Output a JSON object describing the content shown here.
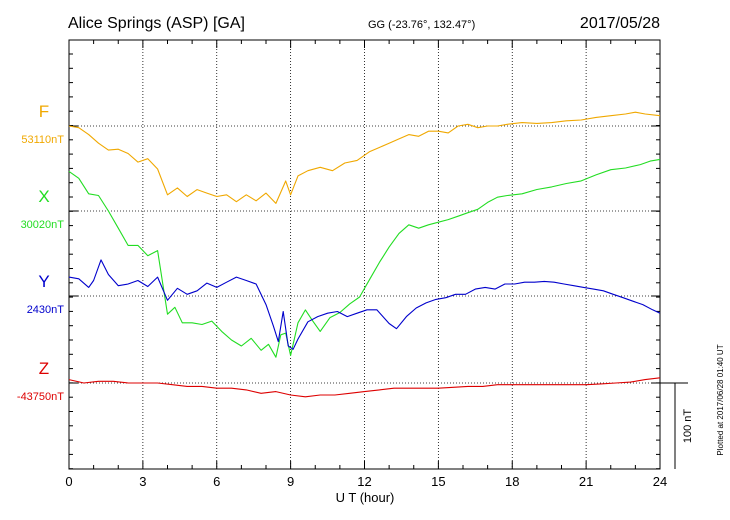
{
  "header": {
    "title": "Alice Springs (ASP)  [GA]",
    "coords": "GG (-23.76°, 132.47°)",
    "date": "2017/05/28"
  },
  "footer_note": "Plotted at 2017/06/28 01:40 UT",
  "chart_data": {
    "type": "line",
    "xlabel": "U T (hour)",
    "xlim": [
      0,
      24
    ],
    "xticks": [
      0,
      3,
      6,
      9,
      12,
      15,
      18,
      21,
      24
    ],
    "grid": true,
    "scale_bar": {
      "label": "100 nT",
      "value_nT": 100
    },
    "series": [
      {
        "name": "F",
        "baseline_label": "53110nT",
        "baseline_nT": 53110,
        "color": "#f0a800",
        "x": [
          0,
          0.4,
          0.8,
          1.2,
          1.6,
          2.0,
          2.4,
          2.8,
          3.2,
          3.6,
          4.0,
          4.4,
          4.8,
          5.2,
          5.6,
          6.0,
          6.4,
          6.8,
          7.2,
          7.6,
          8.0,
          8.4,
          8.8,
          9.0,
          9.3,
          9.7,
          10.2,
          10.7,
          11.2,
          11.7,
          12.2,
          12.6,
          13.0,
          13.4,
          13.8,
          14.2,
          14.6,
          15.0,
          15.4,
          15.8,
          16.2,
          16.6,
          17.0,
          17.4,
          17.8,
          18.4,
          19.0,
          19.6,
          20.2,
          20.8,
          21.4,
          22.0,
          22.6,
          23.0,
          23.4,
          24.0
        ],
        "y": [
          53110,
          53108,
          53100,
          53090,
          53082,
          53083,
          53078,
          53068,
          53072,
          53060,
          53030,
          53038,
          53028,
          53036,
          53032,
          53028,
          53030,
          53022,
          53030,
          53023,
          53032,
          53020,
          53046,
          53030,
          53052,
          53058,
          53062,
          53058,
          53067,
          53070,
          53080,
          53085,
          53090,
          53095,
          53100,
          53098,
          53104,
          53104,
          53102,
          53110,
          53112,
          53108,
          53110,
          53110,
          53112,
          53114,
          53113,
          53114,
          53116,
          53117,
          53120,
          53122,
          53124,
          53126,
          53124,
          53122
        ]
      },
      {
        "name": "X",
        "baseline_label": "30020nT",
        "baseline_nT": 30020,
        "color": "#22dd22",
        "x": [
          0,
          0.4,
          0.8,
          1.2,
          1.6,
          2.0,
          2.4,
          2.8,
          3.2,
          3.6,
          4.0,
          4.3,
          4.6,
          5.0,
          5.4,
          5.8,
          6.2,
          6.6,
          7.0,
          7.4,
          7.8,
          8.1,
          8.4,
          8.6,
          8.8,
          9.0,
          9.3,
          9.6,
          9.9,
          10.2,
          10.6,
          11.0,
          11.4,
          11.8,
          12.2,
          12.6,
          13.0,
          13.4,
          13.8,
          14.2,
          14.6,
          15.0,
          15.4,
          15.8,
          16.2,
          16.6,
          17.0,
          17.4,
          17.8,
          18.4,
          19.0,
          19.6,
          20.2,
          20.8,
          21.4,
          22.0,
          22.6,
          23.2,
          23.6,
          24.0
        ],
        "y": [
          30066,
          30058,
          30040,
          30038,
          30020,
          30000,
          29980,
          29980,
          29968,
          29974,
          29900,
          29908,
          29890,
          29890,
          29888,
          29892,
          29880,
          29870,
          29863,
          29872,
          29858,
          29865,
          29850,
          29876,
          29878,
          29852,
          29890,
          29905,
          29892,
          29880,
          29896,
          29902,
          29912,
          29920,
          29940,
          29960,
          29978,
          29994,
          30004,
          30000,
          30004,
          30007,
          30010,
          30014,
          30018,
          30022,
          30030,
          30036,
          30038,
          30040,
          30045,
          30048,
          30052,
          30055,
          30062,
          30068,
          30070,
          30074,
          30078,
          30080
        ]
      },
      {
        "name": "Y",
        "baseline_label": "2430nT",
        "baseline_nT": 2430,
        "color": "#0000cc",
        "x": [
          0,
          0.4,
          0.8,
          1.0,
          1.3,
          1.6,
          2.0,
          2.4,
          2.8,
          3.2,
          3.6,
          4.0,
          4.4,
          4.8,
          5.2,
          5.6,
          6.0,
          6.4,
          6.8,
          7.2,
          7.6,
          8.0,
          8.3,
          8.5,
          8.7,
          8.9,
          9.1,
          9.3,
          9.7,
          10.1,
          10.5,
          10.9,
          11.3,
          11.7,
          12.1,
          12.5,
          13.0,
          13.3,
          13.7,
          14.1,
          14.5,
          14.9,
          15.3,
          15.7,
          16.1,
          16.5,
          16.9,
          17.3,
          17.7,
          18.1,
          18.5,
          18.9,
          19.3,
          19.7,
          20.1,
          20.5,
          20.9,
          21.3,
          21.7,
          22.1,
          22.5,
          22.9,
          23.3,
          23.7,
          24.0
        ],
        "y": [
          2452,
          2450,
          2440,
          2448,
          2472,
          2455,
          2442,
          2444,
          2448,
          2441,
          2452,
          2425,
          2439,
          2432,
          2436,
          2445,
          2440,
          2446,
          2452,
          2448,
          2444,
          2420,
          2395,
          2377,
          2412,
          2372,
          2368,
          2380,
          2400,
          2406,
          2410,
          2412,
          2406,
          2410,
          2414,
          2414,
          2398,
          2392,
          2406,
          2416,
          2422,
          2426,
          2428,
          2432,
          2432,
          2438,
          2440,
          2438,
          2444,
          2444,
          2446,
          2446,
          2447,
          2446,
          2444,
          2442,
          2440,
          2438,
          2436,
          2432,
          2428,
          2424,
          2420,
          2414,
          2410
        ]
      },
      {
        "name": "Z",
        "baseline_label": "-43750nT",
        "baseline_nT": -43750,
        "color": "#dd0000",
        "x": [
          0,
          0.6,
          1.2,
          1.8,
          2.4,
          3.0,
          3.6,
          4.2,
          4.8,
          5.4,
          6.0,
          6.6,
          7.2,
          7.8,
          8.4,
          9.0,
          9.6,
          10.2,
          10.8,
          11.4,
          12.0,
          12.6,
          13.2,
          13.8,
          14.4,
          15.0,
          15.6,
          16.2,
          16.8,
          17.4,
          18.0,
          18.6,
          19.2,
          19.8,
          20.4,
          21.0,
          21.6,
          22.2,
          22.8,
          23.4,
          24.0
        ],
        "y": [
          -43746,
          -43750,
          -43748,
          -43748,
          -43750,
          -43750,
          -43750,
          -43752,
          -43754,
          -43754,
          -43756,
          -43756,
          -43758,
          -43762,
          -43760,
          -43764,
          -43766,
          -43764,
          -43764,
          -43762,
          -43760,
          -43758,
          -43756,
          -43756,
          -43756,
          -43756,
          -43755,
          -43754,
          -43754,
          -43752,
          -43752,
          -43752,
          -43752,
          -43752,
          -43752,
          -43752,
          -43751,
          -43750,
          -43749,
          -43746,
          -43744
        ]
      }
    ]
  }
}
